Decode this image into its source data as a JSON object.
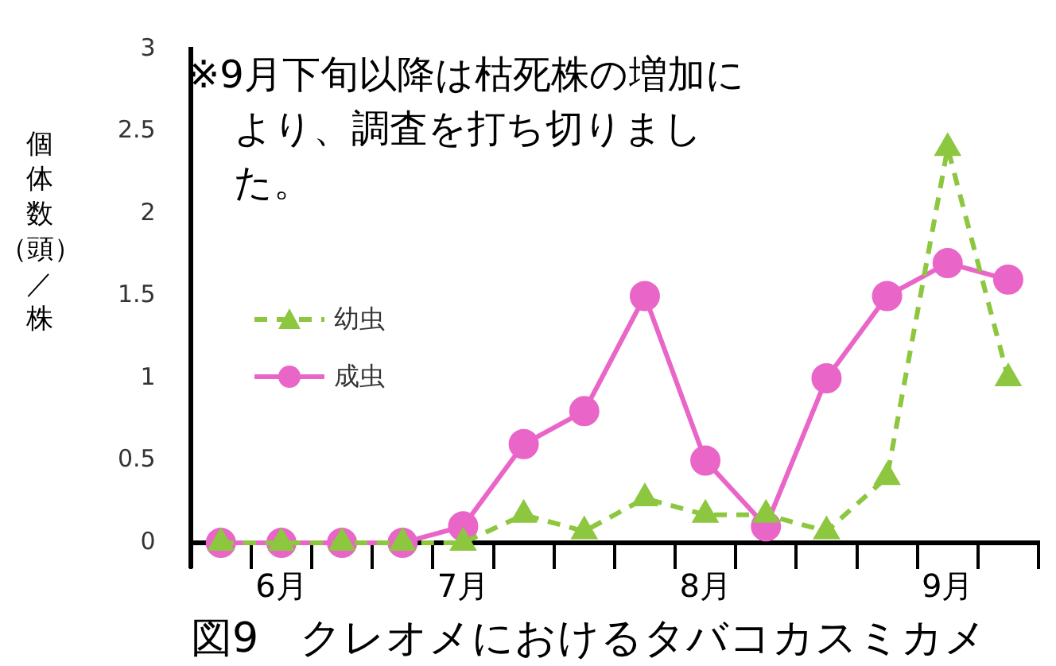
{
  "chart_data": {
    "type": "line",
    "title": "図9　クレオメにおけるタバコカスミカメ",
    "ylabel": "個体数（頭）／株",
    "annotations": [
      "※9月下旬以降は枯死株の増加により、調査を打ち切りました。"
    ],
    "categories": [
      null,
      "6月",
      null,
      null,
      "7月",
      null,
      null,
      null,
      "8月",
      null,
      null,
      null,
      "9月",
      null
    ],
    "series": [
      {
        "name": "幼虫",
        "color": "#8dc63f",
        "line_style": "dashed",
        "marker": "triangle",
        "values": [
          0,
          0,
          0,
          0,
          0,
          0.17,
          0.07,
          0.27,
          0.17,
          0.17,
          0.07,
          0.4,
          2.4,
          1.0
        ]
      },
      {
        "name": "成虫",
        "color": "#e966c8",
        "line_style": "solid",
        "marker": "circle",
        "values": [
          0,
          0,
          0,
          0,
          0.1,
          0.6,
          0.8,
          1.5,
          0.5,
          0.1,
          1.0,
          1.5,
          1.7,
          1.6
        ]
      }
    ],
    "ylim": [
      -0.15,
      3
    ],
    "yticks": [
      0,
      0.5,
      1,
      1.5,
      2,
      2.5,
      3
    ],
    "grid": false,
    "legend": "left"
  }
}
